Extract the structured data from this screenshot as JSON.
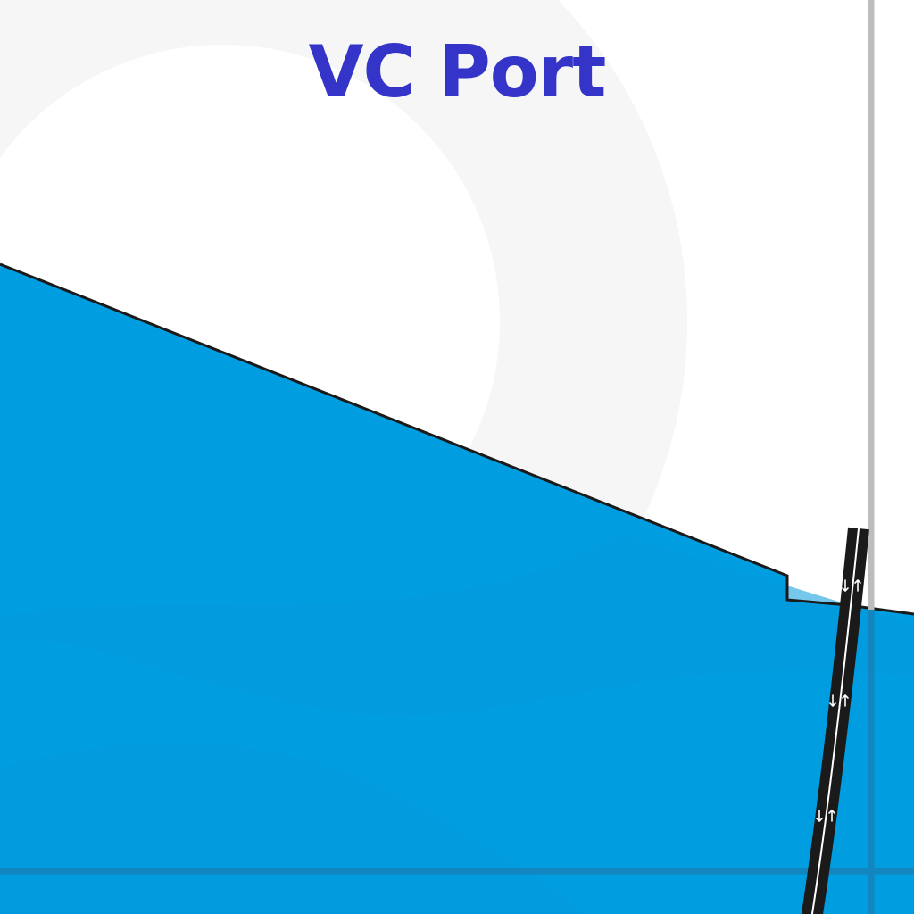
{
  "map": {
    "title": "VC Port",
    "features": {
      "water": "water-body",
      "land": "land",
      "shoreline": "shoreline",
      "road": "two-way-road",
      "gridline": "map-gridline"
    },
    "road": {
      "direction_markers": [
        "down-arrow",
        "up-arrow"
      ]
    }
  },
  "colors": {
    "land": "#ffffff",
    "watermark": "#f6f6f6",
    "water": "#009ee0",
    "water_shade": "#0399dd",
    "shoreline": "#1a1a1a",
    "road": "#1a1a1a",
    "road_center_line": "#ffffff",
    "gridline_on_land": "#bdbdbd",
    "gridline_on_water": "#1386bf",
    "title": "#3434c8",
    "arrow": "#ffffff"
  }
}
